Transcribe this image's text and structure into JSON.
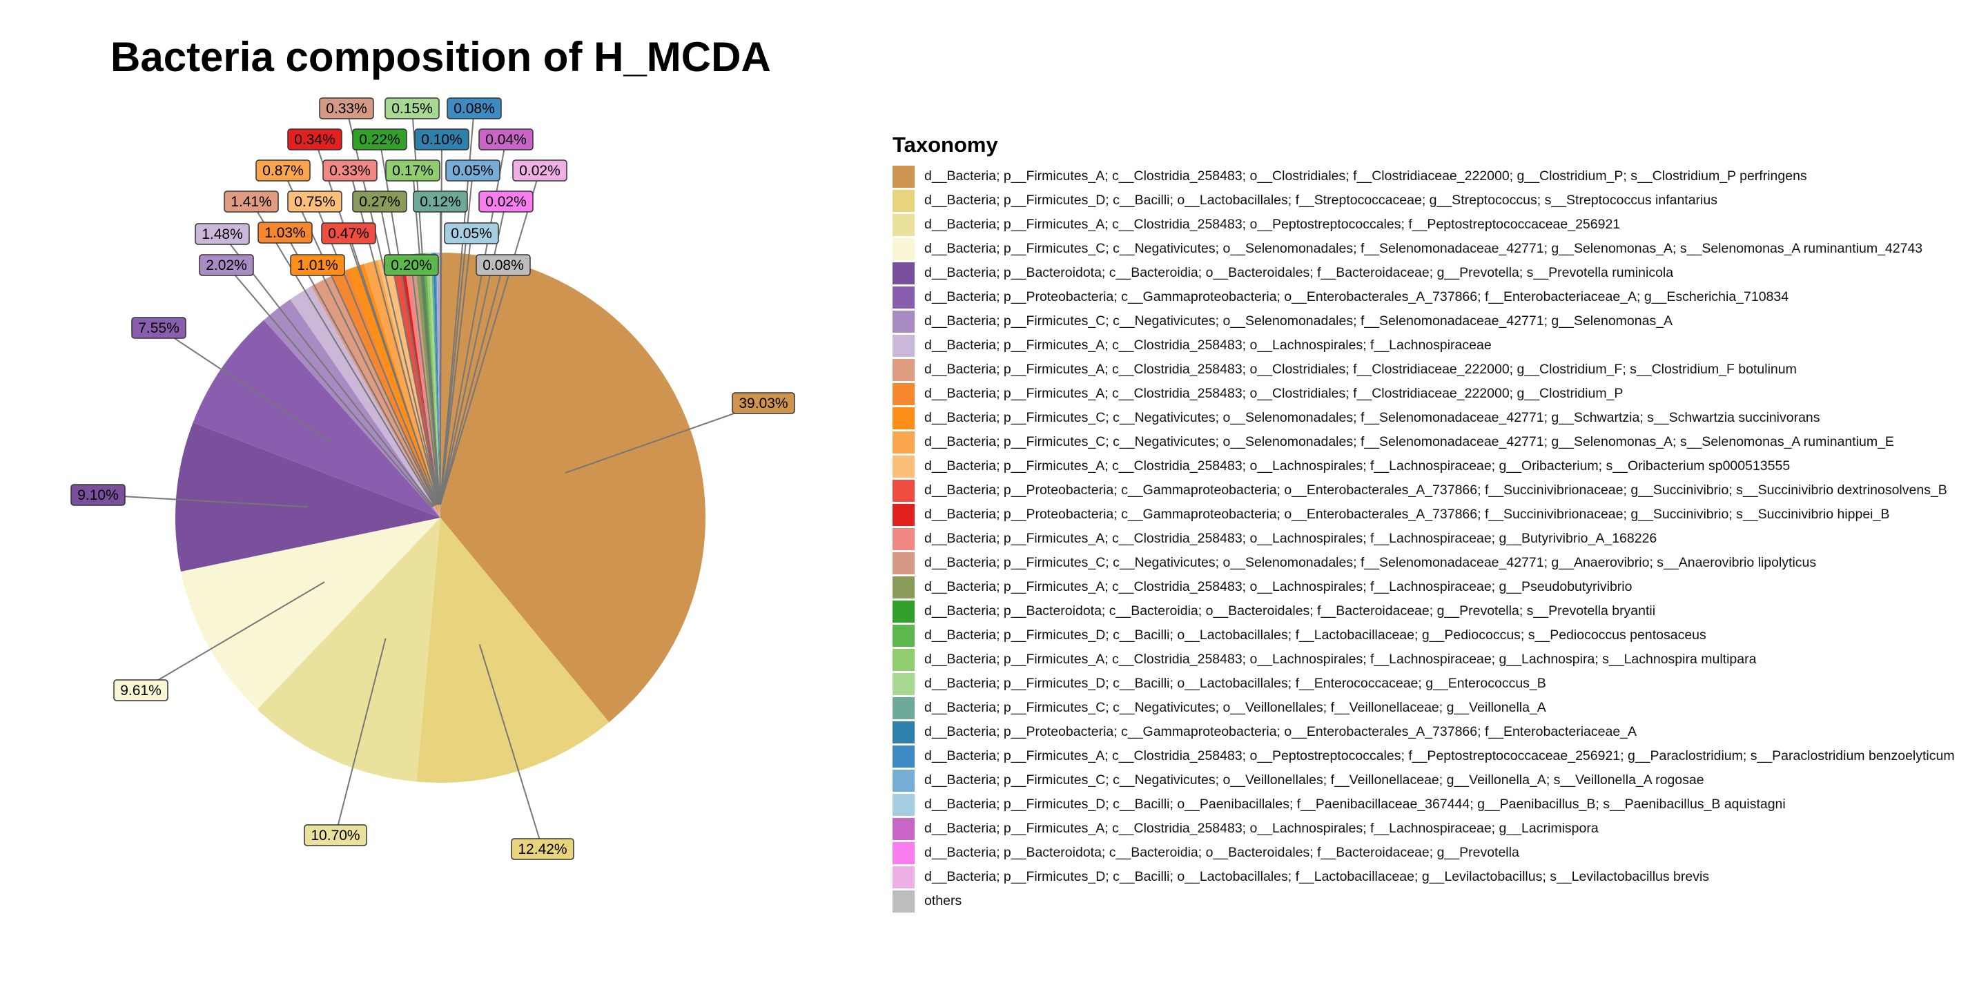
{
  "chart_data": {
    "type": "pie",
    "title": "Bacteria composition of H_MCDA",
    "legend_title": "Taxonomy",
    "legend_position": "right",
    "slices": [
      {
        "label": "d__Bacteria; p__Firmicutes_A; c__Clostridia_258483; o__Clostridiales; f__Clostridiaceae_222000; g__Clostridium_P; s__Clostridium_P perfringens",
        "value": 39.03,
        "text": "39.03%",
        "color": "#CF944F"
      },
      {
        "label": "d__Bacteria; p__Firmicutes_D; c__Bacilli; o__Lactobacillales; f__Streptococcaceae; g__Streptococcus; s__Streptococcus infantarius",
        "value": 12.42,
        "text": "12.42%",
        "color": "#E8D47C"
      },
      {
        "label": "d__Bacteria; p__Firmicutes_A; c__Clostridia_258483; o__Peptostreptococcales; f__Peptostreptococcaceae_256921",
        "value": 10.7,
        "text": "10.70%",
        "color": "#EAE29C"
      },
      {
        "label": "d__Bacteria; p__Firmicutes_C; c__Negativicutes; o__Selenomonadales; f__Selenomonadaceae_42771; g__Selenomonas_A; s__Selenomonas_A ruminantium_42743",
        "value": 9.61,
        "text": "9.61%",
        "color": "#F9F6D5"
      },
      {
        "label": "d__Bacteria; p__Bacteroidota; c__Bacteroidia; o__Bacteroidales; f__Bacteroidaceae; g__Prevotella; s__Prevotella ruminicola",
        "value": 9.1,
        "text": "9.10%",
        "color": "#7A509C"
      },
      {
        "label": "d__Bacteria; p__Proteobacteria; c__Gammaproteobacteria; o__Enterobacterales_A_737866; f__Enterobacteriaceae_A; g__Escherichia_710834",
        "value": 7.55,
        "text": "7.55%",
        "color": "#8A5EAF"
      },
      {
        "label": "d__Bacteria; p__Firmicutes_C; c__Negativicutes; o__Selenomonadales; f__Selenomonadaceae_42771; g__Selenomonas_A",
        "value": 2.02,
        "text": "2.02%",
        "color": "#A98BC4"
      },
      {
        "label": "d__Bacteria; p__Firmicutes_A; c__Clostridia_258483; o__Lachnospirales; f__Lachnospiraceae",
        "value": 1.48,
        "text": "1.48%",
        "color": "#CBB7D8"
      },
      {
        "label": "d__Bacteria; p__Firmicutes_A; c__Clostridia_258483; o__Clostridiales; f__Clostridiaceae_222000; g__Clostridium_F; s__Clostridium_F botulinum",
        "value": 1.41,
        "text": "1.41%",
        "color": "#E09C80"
      },
      {
        "label": "d__Bacteria; p__Firmicutes_A; c__Clostridia_258483; o__Clostridiales; f__Clostridiaceae_222000; g__Clostridium_P",
        "value": 1.03,
        "text": "1.03%",
        "color": "#F5872F"
      },
      {
        "label": "d__Bacteria; p__Firmicutes_C; c__Negativicutes; o__Selenomonadales; f__Selenomonadaceae_42771; g__Schwartzia; s__Schwartzia succinivorans",
        "value": 1.01,
        "text": "1.01%",
        "color": "#FD8E17"
      },
      {
        "label": "d__Bacteria; p__Firmicutes_C; c__Negativicutes; o__Selenomonadales; f__Selenomonadaceae_42771; g__Selenomonas_A; s__Selenomonas_A ruminantium_E",
        "value": 0.87,
        "text": "0.87%",
        "color": "#FBA54D"
      },
      {
        "label": "d__Bacteria; p__Firmicutes_A; c__Clostridia_258483; o__Lachnospirales; f__Lachnospiraceae; g__Oribacterium; s__Oribacterium sp000513555",
        "value": 0.75,
        "text": "0.75%",
        "color": "#FBBF7A"
      },
      {
        "label": "d__Bacteria; p__Proteobacteria; c__Gammaproteobacteria; o__Enterobacterales_A_737866; f__Succinivibrionaceae; g__Succinivibrio; s__Succinivibrio dextrinosolvens_B",
        "value": 0.47,
        "text": "0.47%",
        "color": "#EE4D3F"
      },
      {
        "label": "d__Bacteria; p__Proteobacteria; c__Gammaproteobacteria; o__Enterobacterales_A_737866; f__Succinivibrionaceae; g__Succinivibrio; s__Succinivibrio hippei_B",
        "value": 0.34,
        "text": "0.34%",
        "color": "#E2211F"
      },
      {
        "label": "d__Bacteria; p__Firmicutes_A; c__Clostridia_258483; o__Lachnospirales; f__Lachnospiraceae; g__Butyrivibrio_A_168226",
        "value": 0.33,
        "text": "0.33%",
        "color": "#F28883"
      },
      {
        "label": "d__Bacteria; p__Firmicutes_C; c__Negativicutes; o__Selenomonadales; f__Selenomonadaceae_42771; g__Anaerovibrio; s__Anaerovibrio lipolyticus",
        "value": 0.33,
        "text": "0.33%",
        "color": "#D49A86"
      },
      {
        "label": "d__Bacteria; p__Firmicutes_A; c__Clostridia_258483; o__Lachnospirales; f__Lachnospiraceae; g__Pseudobutyrivibrio",
        "value": 0.27,
        "text": "0.27%",
        "color": "#889B58"
      },
      {
        "label": "d__Bacteria; p__Bacteroidota; c__Bacteroidia; o__Bacteroidales; f__Bacteroidaceae; g__Prevotella; s__Prevotella bryantii",
        "value": 0.22,
        "text": "0.22%",
        "color": "#33A02C"
      },
      {
        "label": "d__Bacteria; p__Firmicutes_D; c__Bacilli; o__Lactobacillales; f__Lactobacillaceae; g__Pediococcus; s__Pediococcus pentosaceus",
        "value": 0.2,
        "text": "0.20%",
        "color": "#5CB84C"
      },
      {
        "label": "d__Bacteria; p__Firmicutes_A; c__Clostridia_258483; o__Lachnospirales; f__Lachnospiraceae; g__Lachnospira; s__Lachnospira multipara",
        "value": 0.17,
        "text": "0.17%",
        "color": "#8FCD6E"
      },
      {
        "label": "d__Bacteria; p__Firmicutes_D; c__Bacilli; o__Lactobacillales; f__Enterococcaceae; g__Enterococcus_B",
        "value": 0.15,
        "text": "0.15%",
        "color": "#A8D992"
      },
      {
        "label": "d__Bacteria; p__Firmicutes_C; c__Negativicutes; o__Veillonellales; f__Veillonellaceae; g__Veillonella_A",
        "value": 0.12,
        "text": "0.12%",
        "color": "#6DAA9A"
      },
      {
        "label": "d__Bacteria; p__Proteobacteria; c__Gammaproteobacteria; o__Enterobacterales_A_737866; f__Enterobacteriaceae_A",
        "value": 0.1,
        "text": "0.10%",
        "color": "#2F80AC"
      },
      {
        "label": "d__Bacteria; p__Firmicutes_A; c__Clostridia_258483; o__Peptostreptococcales; f__Peptostreptococcaceae_256921; g__Paraclostridium; s__Paraclostridium benzoelyticum",
        "value": 0.08,
        "text": "0.08%",
        "color": "#3D8BC2"
      },
      {
        "label": "d__Bacteria; p__Firmicutes_C; c__Negativicutes; o__Veillonellales; f__Veillonellaceae; g__Veillonella_A; s__Veillonella_A rogosae",
        "value": 0.05,
        "text": "0.05%",
        "color": "#76ADD6"
      },
      {
        "label": "d__Bacteria; p__Firmicutes_D; c__Bacilli; o__Paenibacillales; f__Paenibacillaceae_367444; g__Paenibacillus_B; s__Paenibacillus_B aquistagni",
        "value": 0.05,
        "text": "0.05%",
        "color": "#A6CEE3"
      },
      {
        "label": "d__Bacteria; p__Firmicutes_A; c__Clostridia_258483; o__Lachnospirales; f__Lachnospiraceae; g__Lacrimispora",
        "value": 0.04,
        "text": "0.04%",
        "color": "#C965C6"
      },
      {
        "label": "d__Bacteria; p__Bacteroidota; c__Bacteroidia; o__Bacteroidales; f__Bacteroidaceae; g__Prevotella",
        "value": 0.02,
        "text": "0.02%",
        "color": "#FA7DF0"
      },
      {
        "label": "d__Bacteria; p__Firmicutes_D; c__Bacilli; o__Lactobacillales; f__Lactobacillaceae; g__Levilactobacillus; s__Levilactobacillus brevis",
        "value": 0.02,
        "text": "0.02%",
        "color": "#EFB0E6"
      },
      {
        "label": "others",
        "value": 0.08,
        "text": "0.08%",
        "color": "#BDBDBD"
      }
    ]
  }
}
